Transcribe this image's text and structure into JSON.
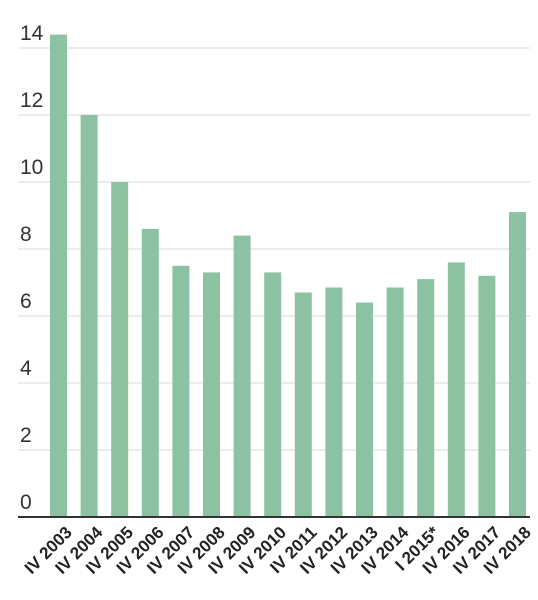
{
  "chart_data": {
    "type": "bar",
    "title": "",
    "xlabel": "",
    "ylabel": "",
    "categories": [
      "IV 2003",
      "IV 2004",
      "IV 2005",
      "IV 2006",
      "IV 2007",
      "IV 2008",
      "IV 2009",
      "IV 2010",
      "IV 2011",
      "IV 2012",
      "IV 2013",
      "IV 2014",
      "I 2015*",
      "IV 2016",
      "IV 2017",
      "IV 2018"
    ],
    "values": [
      14.4,
      12.0,
      10.0,
      8.6,
      7.5,
      7.3,
      8.4,
      7.3,
      6.7,
      6.85,
      6.4,
      6.85,
      7.1,
      7.6,
      7.2,
      9.1
    ],
    "ylim": [
      0,
      14
    ],
    "yticks": [
      0,
      2,
      4,
      6,
      8,
      10,
      12,
      14
    ],
    "grid": true,
    "legend": "none",
    "colors": {
      "bar": "#8cc2a2",
      "grid": "#d9d9d9",
      "axis": "#333333",
      "text": "#333333"
    }
  }
}
